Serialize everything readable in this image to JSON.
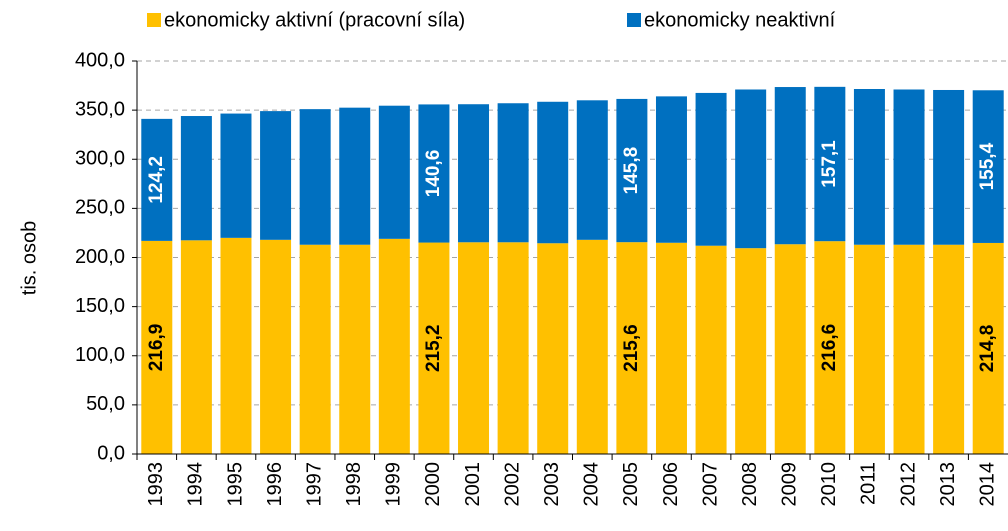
{
  "chart_data": {
    "type": "bar",
    "stacked": true,
    "y_label": "tis. osob",
    "categories": [
      "1993",
      "1994",
      "1995",
      "1996",
      "1997",
      "1998",
      "1999",
      "2000",
      "2001",
      "2002",
      "2003",
      "2004",
      "2005",
      "2006",
      "2007",
      "2008",
      "2009",
      "2010",
      "2011",
      "2012",
      "2013",
      "2014"
    ],
    "series": [
      {
        "name": "ekonomicky aktivní (pracovní síla)",
        "color": "#ffc000",
        "label_color": "#000000",
        "values": [
          216.9,
          217.5,
          220,
          218,
          213,
          213,
          219,
          215.2,
          215.5,
          215.5,
          214.5,
          218,
          215.6,
          215,
          212,
          209.5,
          213.5,
          216.6,
          213,
          213,
          213,
          214.8
        ],
        "value_labels": [
          "216,9",
          null,
          null,
          null,
          null,
          null,
          null,
          "215,2",
          null,
          null,
          null,
          null,
          "215,6",
          null,
          null,
          null,
          null,
          "216,6",
          null,
          null,
          null,
          "214,8"
        ]
      },
      {
        "name": "ekonomicky neaktivní",
        "color": "#0070c0",
        "label_color": "#ffffff",
        "values": [
          124.2,
          126.5,
          126.5,
          131,
          138,
          139.5,
          135.5,
          140.6,
          140.5,
          141.5,
          144,
          142,
          145.8,
          149,
          155.5,
          161.5,
          160,
          157.1,
          158.5,
          158,
          157.5,
          155.4
        ],
        "value_labels": [
          "124,2",
          null,
          null,
          null,
          null,
          null,
          null,
          "140,6",
          null,
          null,
          null,
          null,
          "145,8",
          null,
          null,
          null,
          null,
          "157,1",
          null,
          null,
          null,
          "155,4"
        ]
      }
    ],
    "ylim": [
      0,
      400
    ],
    "yticks": [
      {
        "value": 0,
        "label": "0,0"
      },
      {
        "value": 50,
        "label": "50,0"
      },
      {
        "value": 100,
        "label": "100,0"
      },
      {
        "value": 150,
        "label": "150,0"
      },
      {
        "value": 200,
        "label": "200,0"
      },
      {
        "value": 250,
        "label": "250,0"
      },
      {
        "value": 300,
        "label": "300,0"
      },
      {
        "value": 350,
        "label": "350,0"
      },
      {
        "value": 400,
        "label": "400,0"
      }
    ],
    "grid": true,
    "legend": "top"
  }
}
